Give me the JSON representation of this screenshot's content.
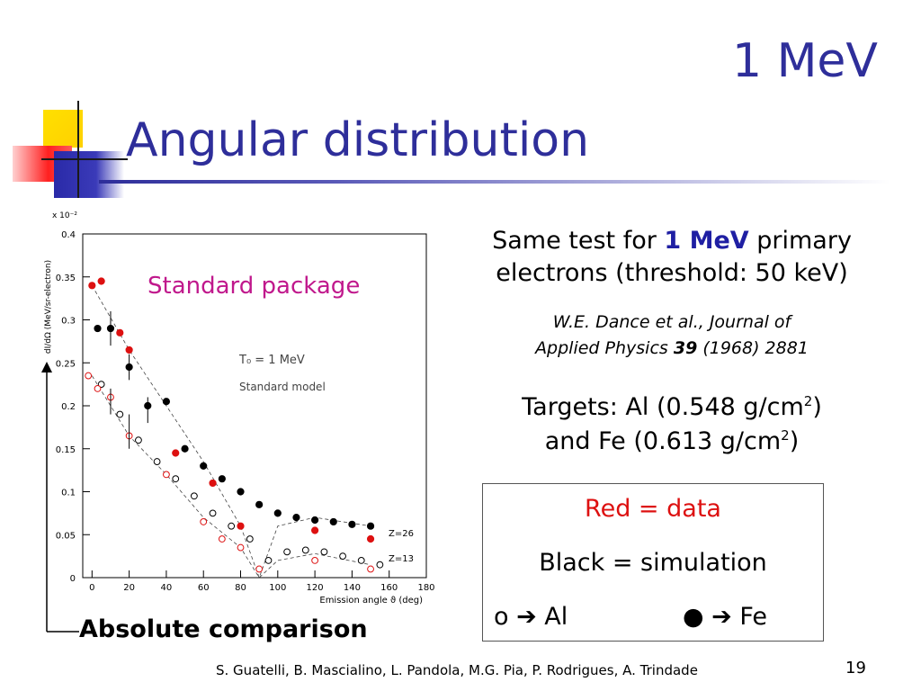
{
  "slide": {
    "title_top": "1 MeV",
    "title_main": "Angular distribution",
    "text_block1": {
      "pre": "Same test for ",
      "highlight": "1 MeV",
      "post": " primary",
      "line2": "electrons (threshold: 50 keV)"
    },
    "reference": {
      "line1": "W.E. Dance et al., Journal of",
      "line2_pre": "Applied Physics ",
      "volume": "39",
      "line2_post": " (1968) 2881"
    },
    "targets": {
      "line1_pre": "Targets:  Al (0.548 g/cm",
      "sup": "2",
      "line1_post": ")",
      "line2_pre": "and Fe (0.613 g/cm",
      "line2_post": ")"
    },
    "legend": {
      "red": "Red = data",
      "black": "Black = simulation",
      "al": "o ➔ Al",
      "fe": "● ➔ Fe"
    },
    "absolute_label": "Absolute comparison",
    "footer": "S. Guatelli, B. Mascialino, L. Pandola, M.G. Pia, P. Rodrigues, A. Trindade",
    "page_number": "19"
  },
  "chart_data": {
    "type": "scatter",
    "title": "",
    "xlabel": "Emission angle ϑ (deg)",
    "ylabel": "dI/dΩ (MeV/sr-electron)",
    "y_multiplier": "x 10⁻²",
    "xlim": [
      -5,
      180
    ],
    "ylim": [
      0,
      0.4
    ],
    "x_ticks": [
      "0",
      "20",
      "40",
      "60",
      "80",
      "100",
      "120",
      "140",
      "160",
      "180"
    ],
    "y_ticks": [
      "0",
      "0.05",
      "0.1",
      "0.15",
      "0.2",
      "0.25",
      "0.3",
      "0.35",
      "0.4"
    ],
    "annotations": {
      "package": "Standard package",
      "t0": "T₀ = 1 MeV",
      "model": "Standard model",
      "z26": "Z=26",
      "z13": "Z=13"
    },
    "series": [
      {
        "name": "",
        "color": "#000000",
        "filled": true,
        "points": [
          [
            3,
            0.29
          ],
          [
            10,
            0.29
          ],
          [
            20,
            0.245
          ],
          [
            30,
            0.2
          ],
          [
            40,
            0.205
          ],
          [
            50,
            0.15
          ],
          [
            60,
            0.13
          ],
          [
            70,
            0.115
          ],
          [
            80,
            0.1
          ],
          [
            90,
            0.085
          ],
          [
            100,
            0.075
          ],
          [
            110,
            0.07
          ],
          [
            120,
            0.067
          ],
          [
            130,
            0.065
          ],
          [
            140,
            0.062
          ],
          [
            150,
            0.06
          ]
        ]
      },
      {
        "name": "",
        "color": "#dd1010",
        "filled": true,
        "points": [
          [
            0,
            0.34
          ],
          [
            5,
            0.345
          ],
          [
            15,
            0.285
          ],
          [
            20,
            0.265
          ],
          [
            45,
            0.145
          ],
          [
            65,
            0.11
          ],
          [
            80,
            0.06
          ],
          [
            120,
            0.055
          ],
          [
            150,
            0.045
          ]
        ]
      },
      {
        "name": "",
        "color": "#000000",
        "filled": false,
        "points": [
          [
            5,
            0.225
          ],
          [
            15,
            0.19
          ],
          [
            25,
            0.16
          ],
          [
            35,
            0.135
          ],
          [
            45,
            0.115
          ],
          [
            55,
            0.095
          ],
          [
            65,
            0.075
          ],
          [
            75,
            0.06
          ],
          [
            85,
            0.045
          ],
          [
            95,
            0.02
          ],
          [
            105,
            0.03
          ],
          [
            115,
            0.032
          ],
          [
            125,
            0.03
          ],
          [
            135,
            0.025
          ],
          [
            145,
            0.02
          ],
          [
            155,
            0.015
          ]
        ]
      },
      {
        "name": "",
        "color": "#dd1010",
        "filled": false,
        "points": [
          [
            -2,
            0.235
          ],
          [
            3,
            0.22
          ],
          [
            10,
            0.21
          ],
          [
            20,
            0.165
          ],
          [
            40,
            0.12
          ],
          [
            60,
            0.065
          ],
          [
            70,
            0.045
          ],
          [
            80,
            0.035
          ],
          [
            90,
            0.01
          ],
          [
            120,
            0.02
          ],
          [
            150,
            0.01
          ]
        ]
      }
    ],
    "fit_lines": [
      {
        "name": "",
        "points": [
          [
            0,
            0.34
          ],
          [
            20,
            0.265
          ],
          [
            40,
            0.2
          ],
          [
            60,
            0.135
          ],
          [
            80,
            0.06
          ],
          [
            90,
            0.0
          ],
          [
            100,
            0.06
          ],
          [
            120,
            0.07
          ],
          [
            150,
            0.06
          ]
        ]
      },
      {
        "name": "",
        "points": [
          [
            0,
            0.235
          ],
          [
            20,
            0.165
          ],
          [
            40,
            0.12
          ],
          [
            60,
            0.07
          ],
          [
            80,
            0.035
          ],
          [
            90,
            0.0
          ],
          [
            100,
            0.02
          ],
          [
            120,
            0.028
          ],
          [
            150,
            0.015
          ]
        ]
      }
    ]
  }
}
